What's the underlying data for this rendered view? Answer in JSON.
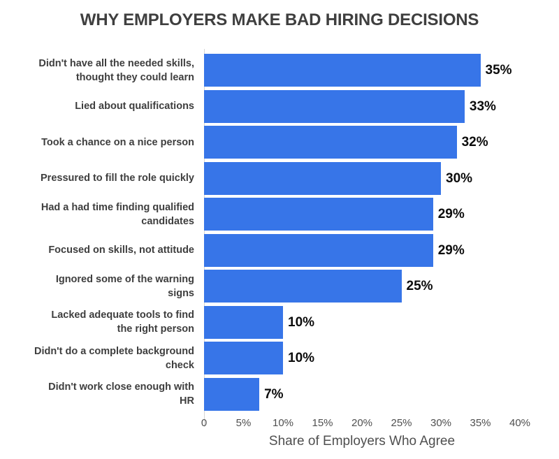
{
  "title": "WHY EMPLOYERS MAKE BAD HIRING DECISIONS",
  "colors": {
    "bar": "#3775E8",
    "title_text": "#3F3F3F",
    "category_text": "#3E3E3E",
    "value_text": "#0C0C0C",
    "tick_text": "#4F4F4F",
    "axis_line": "#D6D6D6",
    "background": "#FFFFFF"
  },
  "x_axis": {
    "label": "Share of Employers Who Agree",
    "max": 40,
    "ticks": [
      {
        "value": 0,
        "label": "0"
      },
      {
        "value": 5,
        "label": "5%"
      },
      {
        "value": 10,
        "label": "10%"
      },
      {
        "value": 15,
        "label": "15%"
      },
      {
        "value": 20,
        "label": "20%"
      },
      {
        "value": 25,
        "label": "25%"
      },
      {
        "value": 30,
        "label": "30%"
      },
      {
        "value": 35,
        "label": "35%"
      },
      {
        "value": 40,
        "label": "40%"
      }
    ]
  },
  "bars": [
    {
      "label_lines": "Didn't have all the needed skills,\nthought they could learn",
      "value": 35,
      "value_label": "35%"
    },
    {
      "label_lines": "Lied about qualifications",
      "value": 33,
      "value_label": "33%"
    },
    {
      "label_lines": "Took a chance on a nice person",
      "value": 32,
      "value_label": "32%"
    },
    {
      "label_lines": "Pressured to fill the role quickly",
      "value": 30,
      "value_label": "30%"
    },
    {
      "label_lines": "Had a had time finding qualified\ncandidates",
      "value": 29,
      "value_label": "29%"
    },
    {
      "label_lines": "Focused on skills, not attitude",
      "value": 29,
      "value_label": "29%"
    },
    {
      "label_lines": "Ignored some of the warning\nsigns",
      "value": 25,
      "value_label": "25%"
    },
    {
      "label_lines": "Lacked adequate tools to find\nthe right person",
      "value": 10,
      "value_label": "10%"
    },
    {
      "label_lines": "Didn't do a complete background\ncheck",
      "value": 10,
      "value_label": "10%"
    },
    {
      "label_lines": "Didn't work close enough with\nHR",
      "value": 7,
      "value_label": "7%"
    }
  ],
  "chart_data": {
    "type": "bar",
    "orientation": "horizontal",
    "title": "WHY EMPLOYERS MAKE BAD HIRING DECISIONS",
    "xlabel": "Share of Employers Who Agree",
    "ylabel": "",
    "categories": [
      "Didn't have all the needed skills, thought they could learn",
      "Lied about qualifications",
      "Took a chance on a nice person",
      "Pressured to fill the role quickly",
      "Had a had time finding qualified candidates",
      "Focused on skills, not attitude",
      "Ignored some of the warning signs",
      "Lacked adequate tools to find the right person",
      "Didn't do a complete background check",
      "Didn't work close enough with HR"
    ],
    "values": [
      35,
      33,
      32,
      30,
      29,
      29,
      25,
      10,
      10,
      7
    ],
    "value_suffix": "%",
    "xlim": [
      0,
      40
    ],
    "x_ticks": [
      "0",
      "5%",
      "10%",
      "15%",
      "20%",
      "25%",
      "30%",
      "35%",
      "40%"
    ],
    "grid": false,
    "legend": false,
    "bar_color": "#3775E8",
    "data_labels": [
      "35%",
      "33%",
      "32%",
      "30%",
      "29%",
      "29%",
      "25%",
      "10%",
      "10%",
      "7%"
    ]
  }
}
